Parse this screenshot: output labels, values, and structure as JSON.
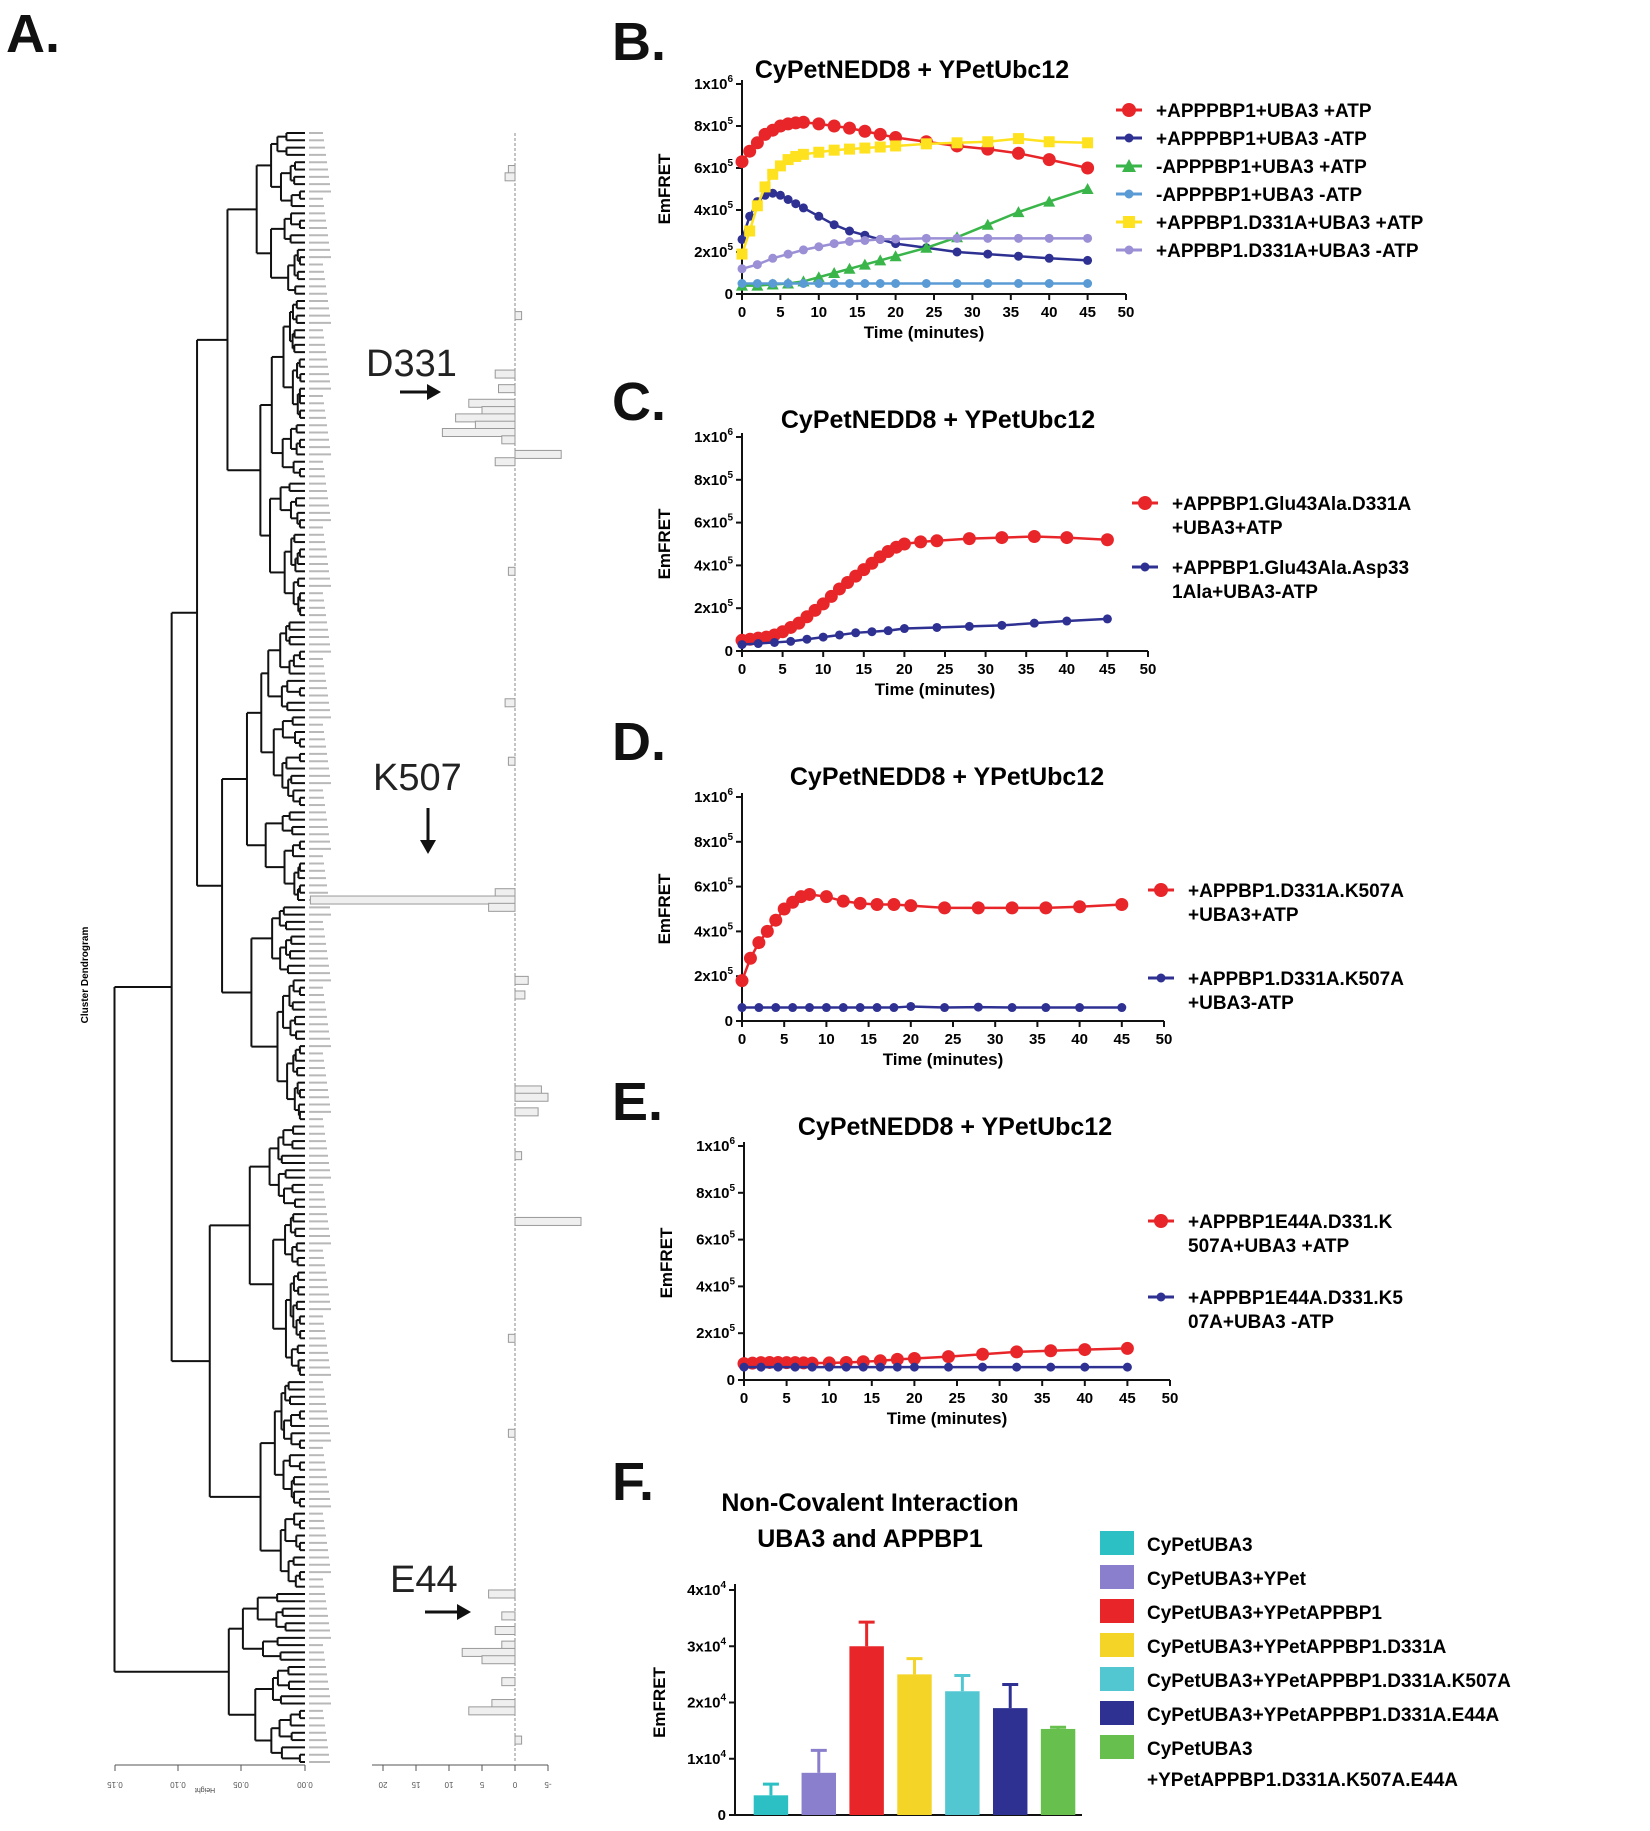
{
  "figure": {
    "panel_labels": [
      "A.",
      "B.",
      "C.",
      "D.",
      "E.",
      "F."
    ]
  },
  "chart_data": [
    {
      "id": "A",
      "type": "bar",
      "orientation": "horizontal",
      "title": "Cluster Dendrogram",
      "xlabel": "",
      "ylabel": "Height",
      "dendrogram_axis_ticks": [
        "0.15",
        "0.10",
        "0.05",
        "0.00"
      ],
      "bar_axis_ticks": [
        "20",
        "15",
        "10",
        "5",
        "0",
        "-5"
      ],
      "annotations": [
        {
          "label": "D331",
          "row": 39
        },
        {
          "label": "K507",
          "row": 105
        },
        {
          "label": "E44",
          "row": 208
        }
      ],
      "bars": [
        {
          "row": 5,
          "value": 1.0
        },
        {
          "row": 6,
          "value": 1.5
        },
        {
          "row": 25,
          "value": -1
        },
        {
          "row": 33,
          "value": 3.0
        },
        {
          "row": 35,
          "value": 2.5
        },
        {
          "row": 37,
          "value": 7.0
        },
        {
          "row": 38,
          "value": 5.0
        },
        {
          "row": 39,
          "value": 9.0
        },
        {
          "row": 40,
          "value": 6.0
        },
        {
          "row": 41,
          "value": 11.0
        },
        {
          "row": 42,
          "value": 2.0
        },
        {
          "row": 44,
          "value": -7.0
        },
        {
          "row": 45,
          "value": 3.0
        },
        {
          "row": 60,
          "value": 1.0
        },
        {
          "row": 78,
          "value": 1.5
        },
        {
          "row": 86,
          "value": 1.0
        },
        {
          "row": 104,
          "value": 3.0
        },
        {
          "row": 105,
          "value": 31.0
        },
        {
          "row": 106,
          "value": 4.0
        },
        {
          "row": 116,
          "value": -2.0
        },
        {
          "row": 118,
          "value": -1.5
        },
        {
          "row": 131,
          "value": -4.0
        },
        {
          "row": 132,
          "value": -5.0
        },
        {
          "row": 134,
          "value": -3.5
        },
        {
          "row": 140,
          "value": -1.0
        },
        {
          "row": 149,
          "value": -10.0
        },
        {
          "row": 165,
          "value": 1.0
        },
        {
          "row": 178,
          "value": 1.0
        },
        {
          "row": 200,
          "value": 4.0
        },
        {
          "row": 203,
          "value": 2.0
        },
        {
          "row": 205,
          "value": 3.0
        },
        {
          "row": 207,
          "value": 2.0
        },
        {
          "row": 208,
          "value": 8.0
        },
        {
          "row": 209,
          "value": 5.0
        },
        {
          "row": 212,
          "value": 2.0
        },
        {
          "row": 215,
          "value": 3.5
        },
        {
          "row": 216,
          "value": 7.0
        },
        {
          "row": 220,
          "value": -1.0
        }
      ]
    },
    {
      "id": "B",
      "type": "line",
      "title": "CyPetNEDD8 + YPetUbc12",
      "xlabel": "Time (minutes)",
      "ylabel": "EmFRET",
      "xlim": [
        0,
        50
      ],
      "ylim": [
        0,
        1000000
      ],
      "xticks": [
        "0",
        "5",
        "10",
        "15",
        "20",
        "25",
        "30",
        "35",
        "40",
        "45",
        "50"
      ],
      "yticks": [
        {
          "mant": "0",
          "exp": ""
        },
        {
          "mant": "2x10",
          "exp": "5"
        },
        {
          "mant": "4x10",
          "exp": "5"
        },
        {
          "mant": "6x10",
          "exp": "5"
        },
        {
          "mant": "8x10",
          "exp": "5"
        },
        {
          "mant": "1x10",
          "exp": "6"
        }
      ],
      "legend_position": "right",
      "series": [
        {
          "name": "+APPPBP1+UBA3 +ATP",
          "color": "#e8262a",
          "marker": "circle",
          "x": [
            0,
            1,
            2,
            3,
            4,
            5,
            6,
            7,
            8,
            10,
            12,
            14,
            16,
            18,
            20,
            24,
            28,
            32,
            36,
            40,
            45
          ],
          "y": [
            630000,
            680000,
            720000,
            760000,
            780000,
            800000,
            810000,
            815000,
            818000,
            810000,
            800000,
            790000,
            775000,
            760000,
            745000,
            725000,
            705000,
            690000,
            670000,
            640000,
            600000
          ]
        },
        {
          "name": "+APPPBP1+UBA3 -ATP",
          "color": "#2e3192",
          "marker": "circle",
          "x": [
            0,
            1,
            2,
            3,
            4,
            5,
            6,
            7,
            8,
            10,
            12,
            14,
            16,
            18,
            20,
            24,
            28,
            32,
            36,
            40,
            45
          ],
          "y": [
            260000,
            370000,
            440000,
            470000,
            480000,
            470000,
            450000,
            430000,
            410000,
            370000,
            330000,
            300000,
            280000,
            260000,
            240000,
            220000,
            200000,
            190000,
            180000,
            170000,
            160000
          ]
        },
        {
          "name": "-APPPBP1+UBA3 +ATP",
          "color": "#39b54a",
          "marker": "triangle",
          "x": [
            0,
            2,
            4,
            6,
            8,
            10,
            12,
            14,
            16,
            18,
            20,
            24,
            28,
            32,
            36,
            40,
            45
          ],
          "y": [
            40000,
            40000,
            45000,
            50000,
            60000,
            80000,
            100000,
            120000,
            140000,
            160000,
            180000,
            220000,
            270000,
            330000,
            390000,
            440000,
            500000
          ]
        },
        {
          "name": "-APPPBP1+UBA3 -ATP",
          "color": "#5b9bd5",
          "marker": "circle",
          "x": [
            0,
            2,
            4,
            6,
            8,
            10,
            12,
            14,
            16,
            18,
            20,
            24,
            28,
            32,
            36,
            40,
            45
          ],
          "y": [
            50000,
            50000,
            50000,
            50000,
            50000,
            50000,
            50000,
            50000,
            50000,
            50000,
            50000,
            50000,
            50000,
            50000,
            50000,
            50000,
            50000
          ]
        },
        {
          "name": "+APPBP1.D331A+UBA3 +ATP",
          "color": "#ffe21f",
          "marker": "square",
          "x": [
            0,
            1,
            2,
            3,
            4,
            5,
            6,
            7,
            8,
            10,
            12,
            14,
            16,
            18,
            20,
            24,
            28,
            32,
            36,
            40,
            45
          ],
          "y": [
            190000,
            300000,
            420000,
            510000,
            570000,
            610000,
            640000,
            655000,
            665000,
            675000,
            685000,
            690000,
            695000,
            700000,
            705000,
            715000,
            720000,
            725000,
            740000,
            725000,
            720000
          ]
        },
        {
          "name": "+APPBP1.D331A+UBA3 -ATP",
          "color": "#9b8fd6",
          "marker": "circle",
          "x": [
            0,
            2,
            4,
            6,
            8,
            10,
            12,
            14,
            16,
            18,
            20,
            24,
            28,
            32,
            36,
            40,
            45
          ],
          "y": [
            120000,
            140000,
            170000,
            190000,
            210000,
            225000,
            240000,
            250000,
            255000,
            260000,
            262000,
            265000,
            265000,
            265000,
            265000,
            265000,
            265000
          ]
        }
      ]
    },
    {
      "id": "C",
      "type": "line",
      "title": "CyPetNEDD8 + YPetUbc12",
      "xlabel": "Time (minutes)",
      "ylabel": "EmFRET",
      "xlim": [
        0,
        50
      ],
      "ylim": [
        0,
        1000000
      ],
      "xticks": [
        "0",
        "5",
        "10",
        "15",
        "20",
        "25",
        "30",
        "35",
        "40",
        "45",
        "50"
      ],
      "yticks": [
        {
          "mant": "0",
          "exp": ""
        },
        {
          "mant": "2x10",
          "exp": "5"
        },
        {
          "mant": "4x10",
          "exp": "5"
        },
        {
          "mant": "6x10",
          "exp": "5"
        },
        {
          "mant": "8x10",
          "exp": "5"
        },
        {
          "mant": "1x10",
          "exp": "6"
        }
      ],
      "legend_position": "right",
      "series": [
        {
          "name": "+APPBP1.Glu43Ala.D331A\n+UBA3+ATP",
          "color": "#e8262a",
          "marker": "circle",
          "x": [
            0,
            1,
            2,
            3,
            4,
            5,
            6,
            7,
            8,
            9,
            10,
            11,
            12,
            13,
            14,
            15,
            16,
            17,
            18,
            19,
            20,
            22,
            24,
            28,
            32,
            36,
            40,
            45
          ],
          "y": [
            50000,
            55000,
            60000,
            65000,
            75000,
            90000,
            110000,
            130000,
            160000,
            190000,
            220000,
            255000,
            290000,
            320000,
            350000,
            380000,
            410000,
            440000,
            465000,
            485000,
            500000,
            510000,
            515000,
            525000,
            530000,
            535000,
            530000,
            520000
          ]
        },
        {
          "name": "+APPBP1.Glu43Ala.Asp33\n1Ala+UBA3-ATP",
          "color": "#2e3192",
          "marker": "circle",
          "x": [
            0,
            2,
            4,
            6,
            8,
            10,
            12,
            14,
            16,
            18,
            20,
            24,
            28,
            32,
            36,
            40,
            45
          ],
          "y": [
            30000,
            35000,
            40000,
            45000,
            55000,
            65000,
            75000,
            85000,
            90000,
            95000,
            105000,
            110000,
            115000,
            120000,
            130000,
            140000,
            150000
          ]
        }
      ]
    },
    {
      "id": "D",
      "type": "line",
      "title": "CyPetNEDD8 + YPetUbc12",
      "xlabel": "Time (minutes)",
      "ylabel": "EmFRET",
      "xlim": [
        0,
        50
      ],
      "ylim": [
        0,
        1000000
      ],
      "xticks": [
        "0",
        "5",
        "10",
        "15",
        "20",
        "25",
        "30",
        "35",
        "40",
        "45",
        "50"
      ],
      "yticks": [
        {
          "mant": "0",
          "exp": ""
        },
        {
          "mant": "2x10",
          "exp": "5"
        },
        {
          "mant": "4x10",
          "exp": "5"
        },
        {
          "mant": "6x10",
          "exp": "5"
        },
        {
          "mant": "8x10",
          "exp": "5"
        },
        {
          "mant": "1x10",
          "exp": "6"
        }
      ],
      "legend_position": "right",
      "series": [
        {
          "name": "+APPBP1.D331A.K507A\n+UBA3+ATP",
          "color": "#e8262a",
          "marker": "circle",
          "x": [
            0,
            1,
            2,
            3,
            4,
            5,
            6,
            7,
            8,
            10,
            12,
            14,
            16,
            18,
            20,
            24,
            28,
            32,
            36,
            40,
            45
          ],
          "y": [
            180000,
            280000,
            350000,
            400000,
            450000,
            500000,
            530000,
            555000,
            565000,
            555000,
            535000,
            525000,
            520000,
            520000,
            515000,
            505000,
            505000,
            505000,
            505000,
            510000,
            520000
          ]
        },
        {
          "name": "+APPBP1.D331A.K507A\n+UBA3-ATP",
          "color": "#2e3192",
          "marker": "circle",
          "x": [
            0,
            2,
            4,
            6,
            8,
            10,
            12,
            14,
            16,
            18,
            20,
            24,
            28,
            32,
            36,
            40,
            45
          ],
          "y": [
            60000,
            60000,
            60000,
            60000,
            60000,
            60000,
            60000,
            60000,
            60000,
            60000,
            65000,
            60000,
            62000,
            60000,
            60000,
            60000,
            60000
          ]
        }
      ]
    },
    {
      "id": "E",
      "type": "line",
      "title": "CyPetNEDD8 + YPetUbc12",
      "xlabel": "Time (minutes)",
      "ylabel": "EmFRET",
      "xlim": [
        0,
        50
      ],
      "ylim": [
        0,
        1000000
      ],
      "xticks": [
        "0",
        "5",
        "10",
        "15",
        "20",
        "25",
        "30",
        "35",
        "40",
        "45",
        "50"
      ],
      "yticks": [
        {
          "mant": "0",
          "exp": ""
        },
        {
          "mant": "2x10",
          "exp": "5"
        },
        {
          "mant": "4x10",
          "exp": "5"
        },
        {
          "mant": "6x10",
          "exp": "5"
        },
        {
          "mant": "8x10",
          "exp": "5"
        },
        {
          "mant": "1x10",
          "exp": "6"
        }
      ],
      "legend_position": "right",
      "series": [
        {
          "name": "+APPBP1E44A.D331.K\n507A+UBA3 +ATP",
          "color": "#e8262a",
          "marker": "circle",
          "x": [
            0,
            1,
            2,
            3,
            4,
            5,
            6,
            7,
            8,
            10,
            12,
            14,
            16,
            18,
            20,
            24,
            28,
            32,
            36,
            40,
            45
          ],
          "y": [
            70000,
            72000,
            74000,
            75000,
            75000,
            74000,
            74000,
            73000,
            72000,
            73000,
            75000,
            78000,
            82000,
            88000,
            92000,
            100000,
            110000,
            120000,
            125000,
            130000,
            135000
          ]
        },
        {
          "name": "+APPBP1E44A.D331.K5\n07A+UBA3 -ATP",
          "color": "#2e3192",
          "marker": "circle",
          "x": [
            0,
            2,
            4,
            6,
            8,
            10,
            12,
            14,
            16,
            18,
            20,
            24,
            28,
            32,
            36,
            40,
            45
          ],
          "y": [
            55000,
            55000,
            55000,
            55000,
            55000,
            55000,
            55000,
            55000,
            55000,
            55000,
            55000,
            55000,
            55000,
            55000,
            55000,
            55000,
            55000
          ]
        }
      ]
    },
    {
      "id": "F",
      "type": "bar",
      "title": "Non-Covalent Interaction\nUBA3 and APPBP1",
      "xlabel": "",
      "ylabel": "EmFRET",
      "ylim": [
        0,
        40000
      ],
      "yticks": [
        {
          "mant": "0",
          "exp": ""
        },
        {
          "mant": "1x10",
          "exp": "4"
        },
        {
          "mant": "2x10",
          "exp": "4"
        },
        {
          "mant": "3x10",
          "exp": "4"
        },
        {
          "mant": "4x10",
          "exp": "4"
        }
      ],
      "legend_position": "right",
      "categories": [
        "CyPetUBA3",
        "CyPetUBA3+YPet",
        "CyPetUBA3+YPetAPPBP1",
        "CyPetUBA3+YPetAPPBP1.D331A",
        "CyPetUBA3+YPetAPPBP1.D331A.K507A",
        "CyPetUBA3+YPetAPPBP1.D331A.E44A",
        "CyPetUBA3\n+YPetAPPBP1.D331A.K507A.E44A"
      ],
      "values": [
        3500,
        7500,
        30000,
        25000,
        22000,
        19000,
        15300
      ],
      "errors": [
        2000,
        4000,
        4300,
        2800,
        2800,
        4200,
        300
      ],
      "colors": [
        "#2cc0c4",
        "#8a7fcc",
        "#e8262a",
        "#f5d428",
        "#52c7d2",
        "#2e3192",
        "#67c04e"
      ]
    }
  ]
}
